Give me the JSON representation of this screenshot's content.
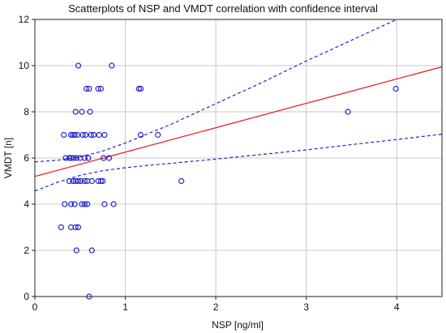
{
  "chart_data": {
    "type": "scatter",
    "title": "Scatterplots of NSP and VMDT correlation with confidence interval",
    "xlabel": "NSP [ng/ml]",
    "ylabel": "VMDT [n]",
    "xlim": [
      0,
      4.5
    ],
    "ylim": [
      0,
      12
    ],
    "xticks": [
      0,
      1,
      2,
      3,
      4
    ],
    "yticks": [
      0,
      2,
      4,
      6,
      8,
      10,
      12
    ],
    "grid": true,
    "colors": {
      "points": "#2222cc",
      "fit_line": "#e8202a",
      "confidence": "#2222cc",
      "grid": "#c8c8c8"
    },
    "points": [
      [
        0.48,
        10
      ],
      [
        0.85,
        10
      ],
      [
        0.57,
        9
      ],
      [
        0.6,
        9
      ],
      [
        0.7,
        9
      ],
      [
        0.73,
        9
      ],
      [
        1.15,
        9
      ],
      [
        1.17,
        9
      ],
      [
        3.99,
        9
      ],
      [
        0.45,
        8
      ],
      [
        0.52,
        8
      ],
      [
        0.61,
        8
      ],
      [
        3.46,
        8
      ],
      [
        0.32,
        7
      ],
      [
        0.4,
        7
      ],
      [
        0.42,
        7
      ],
      [
        0.44,
        7
      ],
      [
        0.47,
        7
      ],
      [
        0.53,
        7
      ],
      [
        0.56,
        7
      ],
      [
        0.62,
        7
      ],
      [
        0.65,
        7
      ],
      [
        0.71,
        7
      ],
      [
        0.77,
        7
      ],
      [
        1.17,
        7
      ],
      [
        1.36,
        7
      ],
      [
        0.34,
        6
      ],
      [
        0.38,
        6
      ],
      [
        0.4,
        6
      ],
      [
        0.43,
        6
      ],
      [
        0.46,
        6
      ],
      [
        0.5,
        6
      ],
      [
        0.55,
        6
      ],
      [
        0.59,
        6
      ],
      [
        0.76,
        6
      ],
      [
        0.82,
        6
      ],
      [
        0.38,
        5
      ],
      [
        0.42,
        5
      ],
      [
        0.45,
        5
      ],
      [
        0.48,
        5
      ],
      [
        0.51,
        5
      ],
      [
        0.55,
        5
      ],
      [
        0.58,
        5
      ],
      [
        0.63,
        5
      ],
      [
        0.7,
        5
      ],
      [
        0.73,
        5
      ],
      [
        0.75,
        5
      ],
      [
        1.62,
        5
      ],
      [
        0.33,
        4
      ],
      [
        0.4,
        4
      ],
      [
        0.44,
        4
      ],
      [
        0.52,
        4
      ],
      [
        0.55,
        4
      ],
      [
        0.58,
        4
      ],
      [
        0.77,
        4
      ],
      [
        0.87,
        4
      ],
      [
        0.29,
        3
      ],
      [
        0.4,
        3
      ],
      [
        0.45,
        3
      ],
      [
        0.48,
        3
      ],
      [
        0.46,
        2
      ],
      [
        0.63,
        2
      ],
      [
        0.6,
        0
      ]
    ],
    "fit_line": {
      "x": [
        0,
        4.5
      ],
      "y": [
        5.2,
        9.95
      ]
    },
    "confidence_upper": {
      "x": [
        0,
        0.25,
        0.5,
        0.75,
        1.0,
        1.25,
        1.5,
        2.0,
        2.5,
        3.0,
        3.5,
        4.0
      ],
      "y": [
        5.83,
        5.9,
        6.05,
        6.3,
        6.65,
        7.05,
        7.45,
        8.35,
        9.25,
        10.2,
        11.1,
        12.0
      ]
    },
    "confidence_lower": {
      "x": [
        0,
        0.25,
        0.5,
        0.75,
        1.0,
        1.25,
        1.5,
        2.0,
        2.5,
        3.0,
        3.5,
        4.0,
        4.5
      ],
      "y": [
        4.57,
        4.95,
        5.25,
        5.45,
        5.58,
        5.68,
        5.77,
        5.95,
        6.15,
        6.35,
        6.58,
        6.8,
        7.03
      ]
    }
  }
}
